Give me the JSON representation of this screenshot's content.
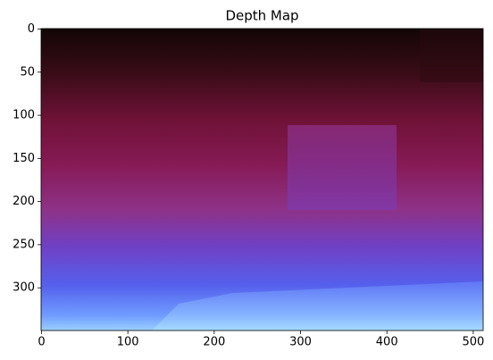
{
  "chart_data": {
    "type": "image",
    "title": "Depth Map",
    "xlim": [
      -0.5,
      511.5
    ],
    "xticks": [
      0,
      100,
      200,
      300,
      400,
      500
    ],
    "ylim": [
      349.5,
      -0.5
    ],
    "yticks": [
      0,
      50,
      100,
      150,
      200,
      250,
      300
    ]
  }
}
